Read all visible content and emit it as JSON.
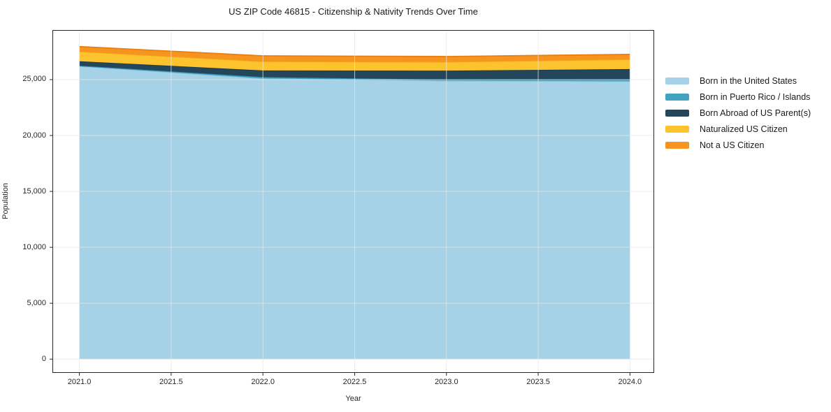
{
  "chart_data": {
    "type": "area",
    "title": "US ZIP Code 46815 - Citizenship & Nativity Trends Over Time",
    "xlabel": "Year",
    "ylabel": "Population",
    "x": [
      2021,
      2022,
      2023,
      2024
    ],
    "series": [
      {
        "name": "Born in the United States",
        "color": "#A5D2E7",
        "edge_color": "#83C2DD",
        "values": [
          26200,
          25100,
          24900,
          24850
        ]
      },
      {
        "name": "Born in Puerto Rico / Islands",
        "color": "#41A3C2",
        "edge_color": "#3191B2",
        "values": [
          40,
          120,
          100,
          160
        ]
      },
      {
        "name": "Born Abroad of US Parent(s)",
        "color": "#24465A",
        "edge_color": "#1B3A4C",
        "values": [
          400,
          600,
          800,
          930
        ]
      },
      {
        "name": "Naturalized US Citizen",
        "color": "#FDC32F",
        "edge_color": "#F0A919",
        "values": [
          870,
          800,
          780,
          870
        ]
      },
      {
        "name": "Not a US Citizen",
        "color": "#F79420",
        "edge_color": "#E87F10",
        "values": [
          440,
          500,
          480,
          440
        ]
      }
    ],
    "xlim": [
      2020.855,
      2024.13
    ],
    "ylim": [
      -1200,
      29400
    ],
    "xticks": {
      "values": [
        2021.0,
        2021.5,
        2022.0,
        2022.5,
        2023.0,
        2023.5,
        2024.0
      ],
      "labels": [
        "2021.0",
        "2021.5",
        "2022.0",
        "2022.5",
        "2023.0",
        "2023.5",
        "2024.0"
      ]
    },
    "yticks": {
      "values": [
        0,
        5000,
        10000,
        15000,
        20000,
        25000
      ],
      "labels": [
        "0",
        "5,000",
        "10,000",
        "15,000",
        "20,000",
        "25,000"
      ]
    },
    "grid": true,
    "grid_color": "rgba(229,229,229,0.75)",
    "spine_color": "#262626",
    "legend_position": "right of plot, frameless"
  }
}
